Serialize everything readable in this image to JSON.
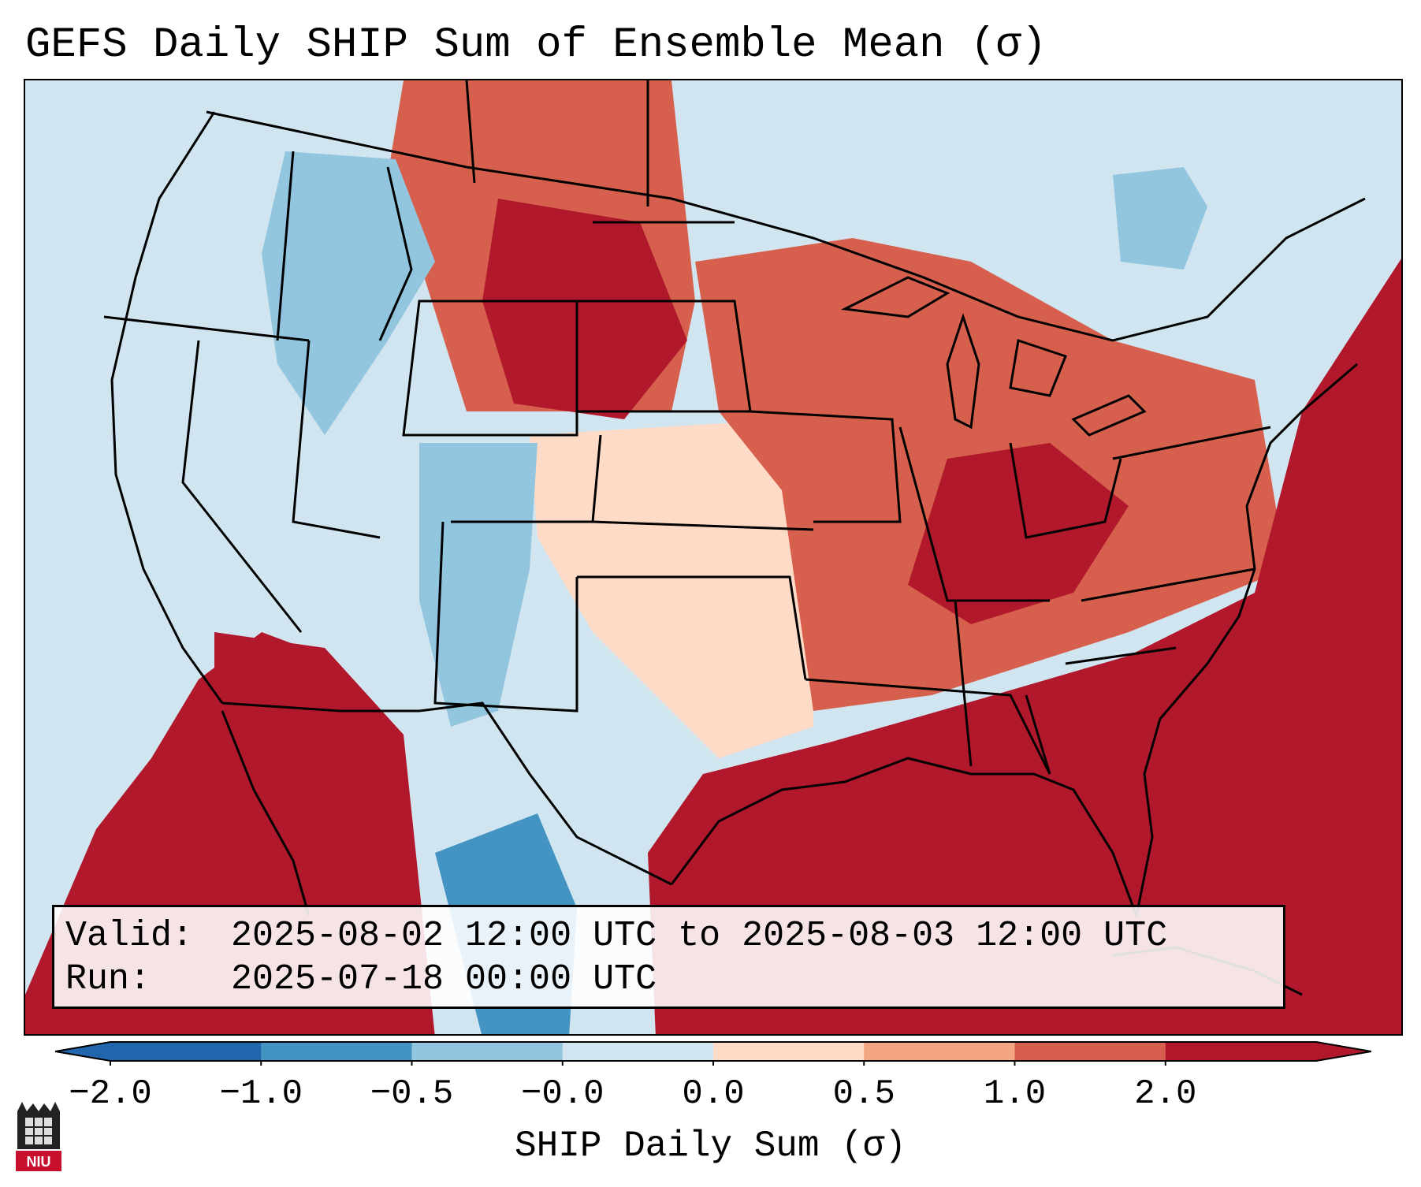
{
  "title": "GEFS Daily SHIP Sum of Ensemble Mean (σ)",
  "info": {
    "valid_label": "Valid:",
    "valid_value": "2025-08-02 12:00 UTC to 2025-08-03 12:00 UTC",
    "run_label": "Run:",
    "run_value": "2025-07-18 00:00 UTC"
  },
  "colorbar": {
    "label": "SHIP Daily Sum (σ)",
    "ticks": [
      "−2.0",
      "−1.0",
      "−0.5",
      "−0.0",
      "0.0",
      "0.5",
      "1.0",
      "2.0"
    ],
    "colors": [
      "#2166ac",
      "#4393c3",
      "#92c5de",
      "#d1e5f0",
      "#fddbc7",
      "#f4a582",
      "#d6604d",
      "#b2182b"
    ]
  },
  "map": {
    "region": "Contiguous United States",
    "region_colors": {
      "ocean_west": "#d1e5f0",
      "pacific_warm": "#b2182b",
      "southwest_mexico": "#b2182b",
      "great_basin": "#d1e5f0",
      "idaho_montana": "#92c5de",
      "colorado_newmexico": "#92c5de",
      "south_texas": "#4393c3",
      "northern_plains": "#d6604d",
      "dakotas_core": "#b2182b",
      "central_plains": "#fddbc7",
      "midwest": "#d6604d",
      "ohio_valley": "#b2182b",
      "southeast_gulf_atlantic": "#b2182b",
      "canada": "#d1e5f0",
      "quebec_patch": "#92c5de"
    }
  },
  "logo": {
    "alt": "NIU"
  }
}
